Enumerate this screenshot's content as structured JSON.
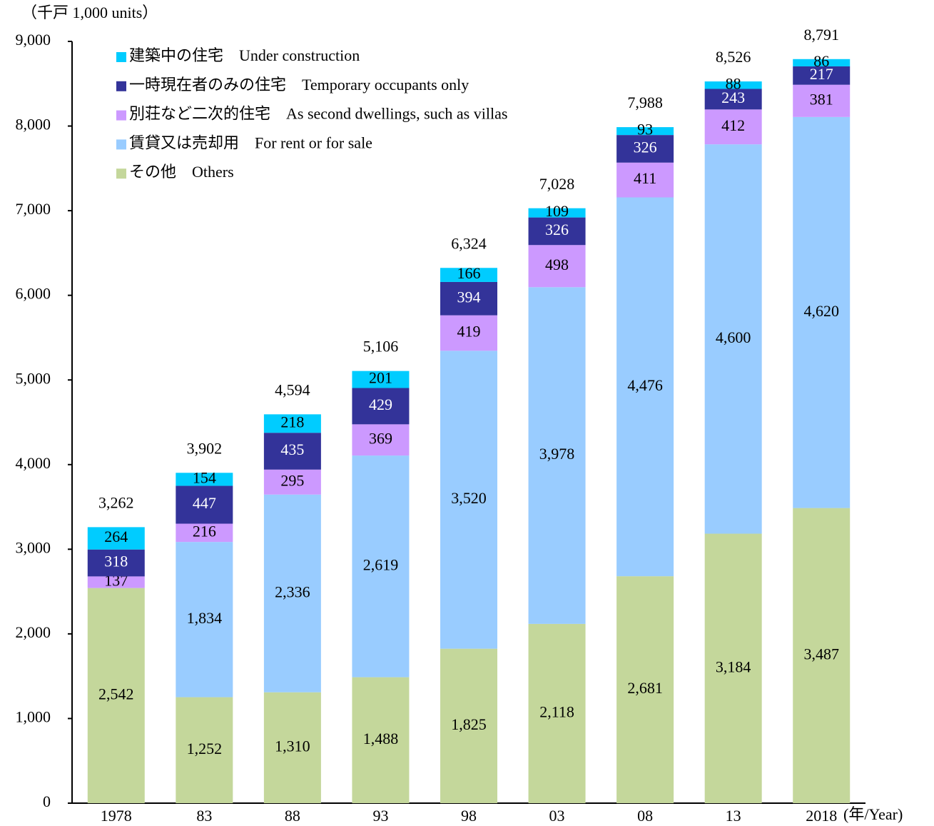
{
  "chart_data": {
    "type": "stacked-bar",
    "y_axis_label": "（千戸 1,000 units）",
    "x_axis_label": "(年/Year)",
    "categories": [
      "1978",
      "83",
      "88",
      "93",
      "98",
      "03",
      "08",
      "13",
      "2018"
    ],
    "series": [
      {
        "name": "その他　Others",
        "color": "#c4d79b",
        "label_color": "#000000",
        "values": [
          2542,
          1252,
          1310,
          1488,
          1825,
          2118,
          2681,
          3184,
          3487
        ],
        "value_labels": [
          "2,542",
          "1,252",
          "1,310",
          "1,488",
          "1,825",
          "2,118",
          "2,681",
          "3,184",
          "3,487"
        ]
      },
      {
        "name": "賃貸又は売却用　For rent or for sale",
        "color": "#99ccff",
        "label_color": "#000000",
        "values": [
          null,
          1834,
          2336,
          2619,
          3520,
          3978,
          4476,
          4600,
          4620
        ],
        "value_labels": [
          null,
          "1,834",
          "2,336",
          "2,619",
          "3,520",
          "3,978",
          "4,476",
          "4,600",
          "4,620"
        ]
      },
      {
        "name": "別荘など二次的住宅　As second dwellings, such as villas",
        "color": "#cc99ff",
        "label_color": "#000000",
        "values": [
          137,
          216,
          295,
          369,
          419,
          498,
          411,
          412,
          381
        ]
      },
      {
        "name": "一時現在者のみの住宅　Temporary occupants only",
        "color": "#333399",
        "label_color": "#ffffff",
        "values": [
          318,
          447,
          435,
          429,
          394,
          326,
          326,
          243,
          217
        ]
      },
      {
        "name": "建築中の住宅　Under construction",
        "color": "#00ccff",
        "label_color": "#000000",
        "values": [
          264,
          154,
          218,
          201,
          166,
          109,
          93,
          88,
          86
        ]
      }
    ],
    "totals": [
      3262,
      3902,
      4594,
      5106,
      6324,
      7028,
      7988,
      8526,
      8791
    ],
    "total_labels": [
      "3,262",
      "3,902",
      "4,594",
      "5,106",
      "6,324",
      "7,028",
      "7,988",
      "8,526",
      "8,791"
    ],
    "ylim": [
      0,
      9000
    ],
    "yticks": [
      0,
      {
        "value": 1000,
        "label": "1,000"
      },
      {
        "value": 2000,
        "label": "2,000"
      },
      {
        "value": 3000,
        "label": "3,000"
      },
      {
        "value": 4000,
        "label": "4,000"
      },
      {
        "value": 5000,
        "label": "5,000"
      },
      {
        "value": 6000,
        "label": "6,000"
      },
      {
        "value": 7000,
        "label": "7,000"
      },
      {
        "value": 8000,
        "label": "8,000"
      },
      {
        "value": 9000,
        "label": "9,000"
      }
    ],
    "grid": false,
    "legend": "top-left"
  }
}
